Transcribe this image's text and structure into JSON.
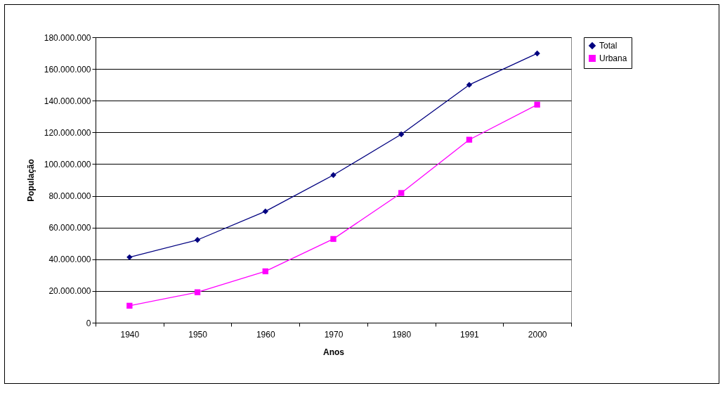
{
  "chart_data": {
    "type": "line",
    "xlabel": "Anos",
    "ylabel": "População",
    "categories": [
      "1940",
      "1950",
      "1960",
      "1970",
      "1980",
      "1991",
      "2000"
    ],
    "series": [
      {
        "name": "Total",
        "color": "#000080",
        "marker": "diamond",
        "values": [
          41300000,
          52200000,
          70200000,
          93100000,
          118800000,
          150000000,
          169800000
        ]
      },
      {
        "name": "Urbana",
        "color": "#ff00ff",
        "marker": "square",
        "values": [
          10700000,
          19200000,
          32400000,
          52800000,
          81800000,
          115400000,
          137500000
        ]
      }
    ],
    "ylim": [
      0,
      180000000
    ],
    "yticks": [
      0,
      {
        "value": 20000000,
        "label": "20.000.000"
      },
      {
        "value": 40000000,
        "label": "40.000.000"
      },
      {
        "value": 60000000,
        "label": "60.000.000"
      },
      {
        "value": 80000000,
        "label": "80.000.000"
      },
      {
        "value": 100000000,
        "label": "100.000.000"
      },
      {
        "value": 120000000,
        "label": "120.000.000"
      },
      {
        "value": 140000000,
        "label": "140.000.000"
      },
      {
        "value": 160000000,
        "label": "160.000.000"
      },
      {
        "value": 180000000,
        "label": "180.000.000"
      }
    ],
    "grid": "y",
    "legend": "right",
    "line_style": "solid"
  }
}
